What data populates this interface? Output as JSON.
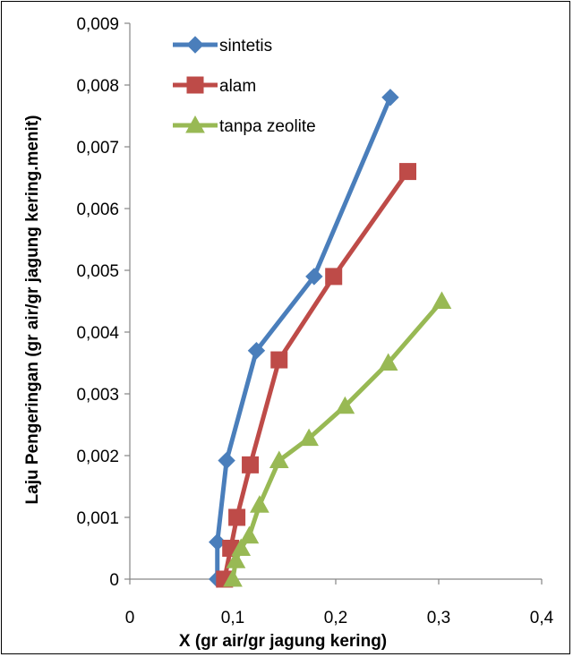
{
  "chart_data": {
    "type": "line",
    "xlabel": "X (gr air/gr jagung kering)",
    "ylabel": "Laju Pengeringan (gr air/gr jagung kering.menit)",
    "xlim": [
      0,
      0.4
    ],
    "ylim": [
      0,
      0.009
    ],
    "x_ticks": [
      "0",
      "0,1",
      "0,2",
      "0,3",
      "0,4"
    ],
    "y_ticks": [
      "0",
      "0,001",
      "0,002",
      "0,003",
      "0,004",
      "0,005",
      "0,006",
      "0,007",
      "0,008",
      "0,009"
    ],
    "grid": false,
    "legend_position": "top-left",
    "series": [
      {
        "name": "sintetis",
        "color": "#4a7ebb",
        "marker": "diamond",
        "x": [
          0.085,
          0.085,
          0.094,
          0.123,
          0.179,
          0.253
        ],
        "y": [
          0.0,
          0.0006,
          0.00192,
          0.0037,
          0.0049,
          0.0078
        ]
      },
      {
        "name": "alam",
        "color": "#be4b48",
        "marker": "square",
        "x": [
          0.092,
          0.098,
          0.104,
          0.117,
          0.145,
          0.198,
          0.27
        ],
        "y": [
          0.0,
          0.0005,
          0.001,
          0.00185,
          0.00355,
          0.0049,
          0.0066
        ]
      },
      {
        "name": "tanpa zeolite",
        "color": "#98b954",
        "marker": "triangle",
        "x": [
          0.1,
          0.103,
          0.108,
          0.116,
          0.126,
          0.145,
          0.174,
          0.209,
          0.251,
          0.303
        ],
        "y": [
          0.0,
          0.0003,
          0.0005,
          0.0007,
          0.0012,
          0.00192,
          0.00228,
          0.0028,
          0.0035,
          0.0045
        ]
      }
    ]
  }
}
